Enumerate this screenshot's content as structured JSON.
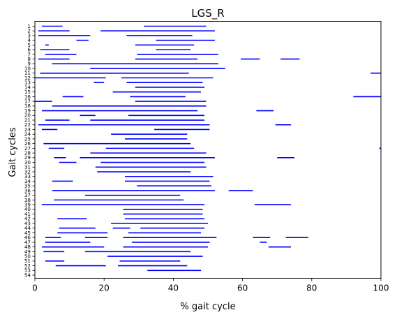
{
  "chart_data": {
    "type": "bar",
    "title": "LGS_R",
    "xlabel": "% gait cycle",
    "ylabel": "Gait cycles",
    "xlim": [
      0,
      100
    ],
    "x_ticks": [
      0,
      20,
      40,
      60,
      80,
      100
    ],
    "y_categories": [
      "1",
      "2",
      "3",
      "4",
      "5",
      "6",
      "7",
      "8",
      "9",
      "10",
      "11",
      "12",
      "13",
      "14",
      "15",
      "16",
      "17",
      "18",
      "19",
      "20",
      "21",
      "22",
      "23",
      "24",
      "25",
      "26",
      "27",
      "28",
      "29",
      "30",
      "31",
      "32",
      "33",
      "34",
      "35",
      "36",
      "37",
      "38",
      "39",
      "40",
      "41",
      "42",
      "43",
      "44",
      "45",
      "46",
      "47",
      "48",
      "49",
      "50",
      "51",
      "52",
      "53",
      "54"
    ],
    "grid": false,
    "color": "#0000ff",
    "intervals": [
      [
        [
          2,
          8
        ],
        [
          31.5,
          49.5
        ]
      ],
      [
        [
          1,
          10
        ],
        [
          19,
          52
        ]
      ],
      [
        [
          1,
          16
        ],
        [
          26.5,
          45.5
        ]
      ],
      [
        [
          12,
          15.5
        ],
        [
          35,
          52
        ]
      ],
      [
        [
          3,
          4
        ],
        [
          29,
          46
        ]
      ],
      [
        [
          1.5,
          10
        ],
        [
          35,
          45
        ]
      ],
      [
        [
          3,
          12
        ],
        [
          29.5,
          53
        ]
      ],
      [
        [
          1,
          10
        ],
        [
          29,
          47
        ],
        [
          59.5,
          65
        ],
        [
          71,
          76.5
        ]
      ],
      [
        [
          5,
          53
        ]
      ],
      [
        [
          16,
          55
        ]
      ],
      [
        [
          1.5,
          44.5
        ],
        [
          97,
          100
        ]
      ],
      [
        [
          0,
          20.5
        ],
        [
          25,
          51.5
        ]
      ],
      [
        [
          17,
          20
        ],
        [
          26.5,
          48.5
        ]
      ],
      [
        [
          29,
          49
        ]
      ],
      [
        [
          22.5,
          48
        ]
      ],
      [
        [
          8,
          14
        ],
        [
          27.5,
          43.5
        ],
        [
          92,
          100
        ]
      ],
      [
        [
          0,
          5
        ],
        [
          29,
          49.5
        ]
      ],
      [
        [
          5,
          49.5
        ]
      ],
      [
        [
          2,
          47
        ],
        [
          64,
          69
        ]
      ],
      [
        [
          13,
          17.5
        ],
        [
          27,
          49
        ]
      ],
      [
        [
          3,
          10
        ],
        [
          16,
          49
        ]
      ],
      [
        [
          1,
          50.5
        ],
        [
          69.5,
          74
        ]
      ],
      [
        [
          2,
          6.5
        ],
        [
          34.5,
          50.5
        ]
      ],
      [
        [
          22,
          44
        ]
      ],
      [
        [
          26,
          44
        ]
      ],
      [
        [
          2.5,
          45
        ]
      ],
      [
        [
          4,
          8.5
        ],
        [
          20.5,
          46
        ],
        [
          99.5,
          100
        ]
      ],
      [
        [
          16,
          49.5
        ]
      ],
      [
        [
          5.5,
          9
        ],
        [
          13,
          52
        ],
        [
          70,
          75
        ]
      ],
      [
        [
          7,
          12
        ],
        [
          19,
          49
        ]
      ],
      [
        [
          17.5,
          49.5
        ]
      ],
      [
        [
          18,
          45
        ]
      ],
      [
        [
          26,
          51.5
        ]
      ],
      [
        [
          5,
          11
        ],
        [
          26,
          50.5
        ]
      ],
      [
        [
          29.5,
          51
        ]
      ],
      [
        [
          5,
          52
        ],
        [
          56,
          63
        ]
      ],
      [
        [
          14.5,
          42
        ]
      ],
      [
        [
          5.5,
          43
        ]
      ],
      [
        [
          2,
          49
        ],
        [
          63.5,
          74
        ]
      ],
      [
        [
          25.5,
          48.5
        ]
      ],
      [
        [
          25.5,
          48.5
        ]
      ],
      [
        [
          6.5,
          15
        ],
        [
          26,
          49
        ]
      ],
      [
        [
          22,
          50
        ]
      ],
      [
        [
          7,
          17.5
        ],
        [
          22.5,
          27.5
        ],
        [
          30.5,
          49
        ]
      ],
      [
        [
          6.5,
          21
        ],
        [
          27,
          48
        ]
      ],
      [
        [
          3,
          7.5
        ],
        [
          14.5,
          21
        ],
        [
          25.5,
          52.5
        ],
        [
          63,
          68
        ],
        [
          72.5,
          79
        ]
      ],
      [
        [
          3,
          16
        ],
        [
          28,
          50.5
        ],
        [
          65,
          67
        ]
      ],
      [
        [
          2,
          20
        ],
        [
          25.5,
          50
        ],
        [
          67.5,
          74
        ]
      ],
      [
        [
          2.5,
          8.5
        ],
        [
          14.5,
          45
        ]
      ],
      [
        [
          21,
          48.5
        ]
      ],
      [
        [
          3,
          8.5
        ],
        [
          24.5,
          42
        ]
      ],
      [
        [
          6,
          20.5
        ],
        [
          24,
          44
        ]
      ],
      [
        [
          32.5,
          48
        ]
      ],
      []
    ]
  }
}
